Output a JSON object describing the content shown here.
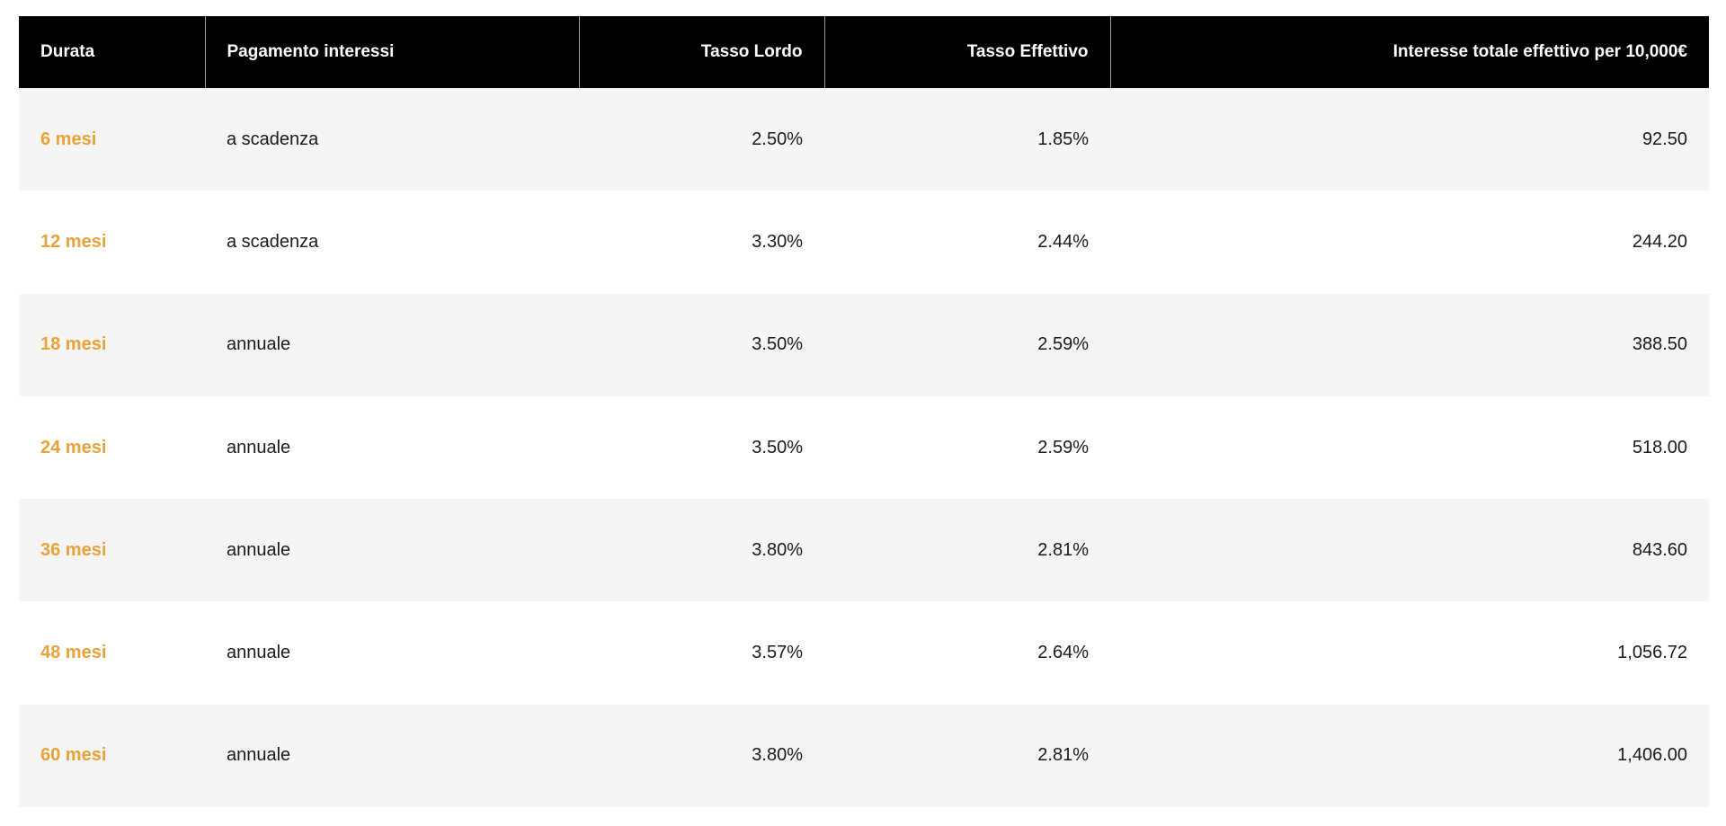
{
  "colors": {
    "header_bg": "#000000",
    "header_text": "#ffffff",
    "accent": "#e8a23a",
    "row_alt_bg": "#f5f5f5",
    "row_bg": "#ffffff"
  },
  "table": {
    "headers": {
      "durata": "Durata",
      "pagamento": "Pagamento interessi",
      "tasso_lordo": "Tasso Lordo",
      "tasso_effettivo": "Tasso Effettivo",
      "interesse_totale": "Interesse totale effettivo per 10,000€"
    },
    "rows": [
      {
        "durata": "6 mesi",
        "pagamento": "a scadenza",
        "tasso_lordo": "2.50%",
        "tasso_effettivo": "1.85%",
        "interesse_totale": "92.50"
      },
      {
        "durata": "12 mesi",
        "pagamento": "a scadenza",
        "tasso_lordo": "3.30%",
        "tasso_effettivo": "2.44%",
        "interesse_totale": "244.20"
      },
      {
        "durata": "18 mesi",
        "pagamento": "annuale",
        "tasso_lordo": "3.50%",
        "tasso_effettivo": "2.59%",
        "interesse_totale": "388.50"
      },
      {
        "durata": "24 mesi",
        "pagamento": "annuale",
        "tasso_lordo": "3.50%",
        "tasso_effettivo": "2.59%",
        "interesse_totale": "518.00"
      },
      {
        "durata": "36 mesi",
        "pagamento": "annuale",
        "tasso_lordo": "3.80%",
        "tasso_effettivo": "2.81%",
        "interesse_totale": "843.60"
      },
      {
        "durata": "48 mesi",
        "pagamento": "annuale",
        "tasso_lordo": "3.57%",
        "tasso_effettivo": "2.64%",
        "interesse_totale": "1,056.72"
      },
      {
        "durata": "60 mesi",
        "pagamento": "annuale",
        "tasso_lordo": "3.80%",
        "tasso_effettivo": "2.81%",
        "interesse_totale": "1,406.00"
      }
    ]
  }
}
